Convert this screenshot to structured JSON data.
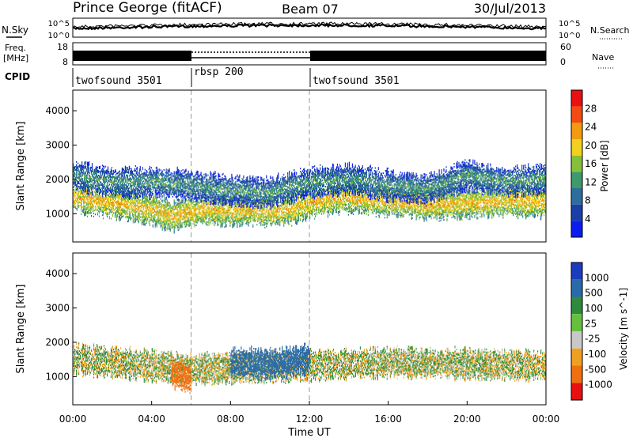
{
  "header": {
    "station": "Prince George (fitACF)",
    "beam": "Beam 07",
    "date": "30/Jul/2013"
  },
  "noise_panel": {
    "left_label": "N.Sky",
    "right_label": "N.Search",
    "left_ticks": [
      "10^5",
      "10^0"
    ],
    "right_ticks": [
      "10^5",
      "10^0"
    ]
  },
  "freq_panel": {
    "left_label_top": "Freq.",
    "left_label_unit": "[MHz]",
    "right_label": "Nave",
    "left_ticks": [
      "18",
      "8"
    ],
    "right_ticks": [
      "60",
      "0"
    ]
  },
  "cpid": {
    "label": "CPID",
    "segments": [
      {
        "name": "twofsound 3501",
        "start_ut": "00:00",
        "end_ut": "06:00"
      },
      {
        "name": "rbsp 200",
        "start_ut": "06:00",
        "end_ut": "12:00"
      },
      {
        "name": "twofsound 3501",
        "start_ut": "12:00",
        "end_ut": "24:00"
      }
    ]
  },
  "chart_data": [
    {
      "type": "heatmap",
      "title": "",
      "ylabel": "Slant Range [km]",
      "xlabel": "",
      "ylim": [
        180,
        4600
      ],
      "yticks": [
        "1000",
        "2000",
        "3000",
        "4000"
      ],
      "colorbar": {
        "label": "Power [dB]",
        "ticks": [
          "4",
          "8",
          "12",
          "16",
          "20",
          "24",
          "28"
        ],
        "colors": [
          "#0a1cf0",
          "#1a3fa8",
          "#2e6e9e",
          "#3e9a6a",
          "#86c03a",
          "#f0d020",
          "#f39a10",
          "#f24a10",
          "#e81010"
        ]
      },
      "dashed_markers_ut": [
        "06:00",
        "12:00"
      ],
      "bands": [
        {
          "desc": "lower band",
          "points": [
            [
              0,
              1450
            ],
            [
              2,
              1300
            ],
            [
              4,
              1100
            ],
            [
              5,
              900
            ],
            [
              6,
              1050
            ],
            [
              7,
              1100
            ],
            [
              8,
              1050
            ],
            [
              9,
              1100
            ],
            [
              10,
              1050
            ],
            [
              11,
              1100
            ],
            [
              12,
              1300
            ],
            [
              14,
              1450
            ],
            [
              16,
              1350
            ],
            [
              18,
              1250
            ],
            [
              20,
              1300
            ],
            [
              22,
              1350
            ],
            [
              24,
              1300
            ]
          ],
          "power_db": 22
        },
        {
          "desc": "upper band",
          "points": [
            [
              0,
              2100
            ],
            [
              2,
              1900
            ],
            [
              4,
              1900
            ],
            [
              6,
              1800
            ],
            [
              8,
              1650
            ],
            [
              10,
              1600
            ],
            [
              12,
              1900
            ],
            [
              14,
              2000
            ],
            [
              16,
              1800
            ],
            [
              18,
              1700
            ],
            [
              20,
              2100
            ],
            [
              22,
              1900
            ],
            [
              24,
              2000
            ]
          ],
          "power_db": 12
        }
      ]
    },
    {
      "type": "heatmap",
      "title": "",
      "ylabel": "Slant Range [km]",
      "xlabel": "Time UT",
      "ylim": [
        180,
        4600
      ],
      "yticks": [
        "1000",
        "2000",
        "3000",
        "4000"
      ],
      "xticks": [
        "00:00",
        "04:00",
        "08:00",
        "12:00",
        "16:00",
        "20:00",
        "00:00"
      ],
      "colorbar": {
        "label": "Velocity [m s^-1]",
        "ticks": [
          "1000",
          "500",
          "100",
          "25",
          "-25",
          "-100",
          "-500",
          "-1000"
        ],
        "colors": [
          "#1c3cc0",
          "#2a6aa8",
          "#2f8a3e",
          "#66c040",
          "#c8c8c8",
          "#f0a020",
          "#f07010",
          "#e81010"
        ]
      },
      "dashed_markers_ut": [
        "06:00",
        "12:00"
      ],
      "bands": [
        {
          "desc": "ground scatter",
          "points": [
            [
              0,
              1500
            ],
            [
              4,
              1300
            ],
            [
              6,
              1200
            ],
            [
              12,
              1300
            ],
            [
              16,
              1400
            ],
            [
              20,
              1350
            ],
            [
              24,
              1300
            ]
          ],
          "velocity": 0
        },
        {
          "desc": "negative flow",
          "points": [
            [
              5,
              1100
            ],
            [
              6,
              900
            ]
          ],
          "velocity": -400
        },
        {
          "desc": "positive flow",
          "points": [
            [
              8,
              1400
            ],
            [
              10,
              1350
            ],
            [
              12,
              1500
            ]
          ],
          "velocity": 400
        }
      ]
    }
  ]
}
